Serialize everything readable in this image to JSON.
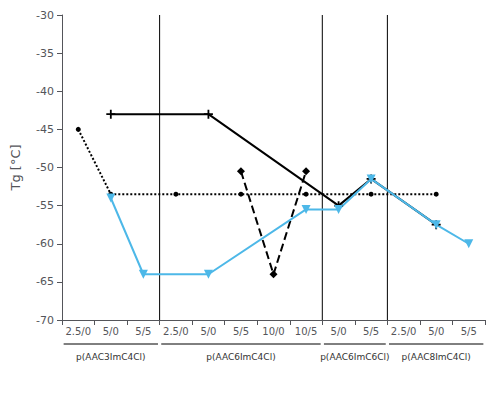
{
  "chart_data": {
    "type": "line",
    "ylabel": "Tg [°C]",
    "categories": [
      "2.5/0",
      "5/0",
      "5/5",
      "2.5/0",
      "5/0",
      "5/5",
      "10/0",
      "10/5",
      "5/0",
      "5/5",
      "2.5/0",
      "5/0",
      "5/5"
    ],
    "series": [
      {
        "color": "#000000",
        "line_style": "solid",
        "marker": "plus",
        "values": [
          null,
          -43.0,
          null,
          null,
          -43.0,
          null,
          null,
          null,
          -55.0,
          -51.5,
          null,
          -57.5,
          null
        ]
      },
      {
        "color": "#000000",
        "line_style": "dotted",
        "marker": "point",
        "values": [
          -45.0,
          -53.5,
          null,
          -53.5,
          null,
          -53.5,
          null,
          -53.5,
          null,
          -53.5,
          null,
          -53.5,
          null
        ]
      },
      {
        "color": "#000000",
        "line_style": "dashed",
        "marker": "diamond",
        "values": [
          null,
          null,
          null,
          null,
          null,
          -50.5,
          -64.0,
          -50.5,
          null,
          null,
          null,
          null,
          null
        ]
      },
      {
        "color": "#4db8e8",
        "line_style": "solid",
        "marker": "triangle_down",
        "values": [
          null,
          -54.0,
          -64.0,
          null,
          -64.0,
          null,
          null,
          -55.5,
          -55.5,
          -51.5,
          null,
          -57.5,
          -60.0
        ]
      }
    ],
    "ylim": [
      -70,
      -30
    ],
    "yticks": [
      -70,
      -65,
      -60,
      -55,
      -50,
      -45,
      -40,
      -35,
      -30
    ],
    "grid": false,
    "annotations": [
      {
        "text": "p(AAC3ImC4Cl)",
        "start": 0,
        "end": 2
      },
      {
        "text": "p(AAC6ImC4Cl)",
        "start": 3,
        "end": 7
      },
      {
        "text": "p(AAC6ImC6Cl)",
        "start": 8,
        "end": 9
      },
      {
        "text": "p(AAC8ImC4Cl)",
        "start": 10,
        "end": 12
      }
    ]
  }
}
